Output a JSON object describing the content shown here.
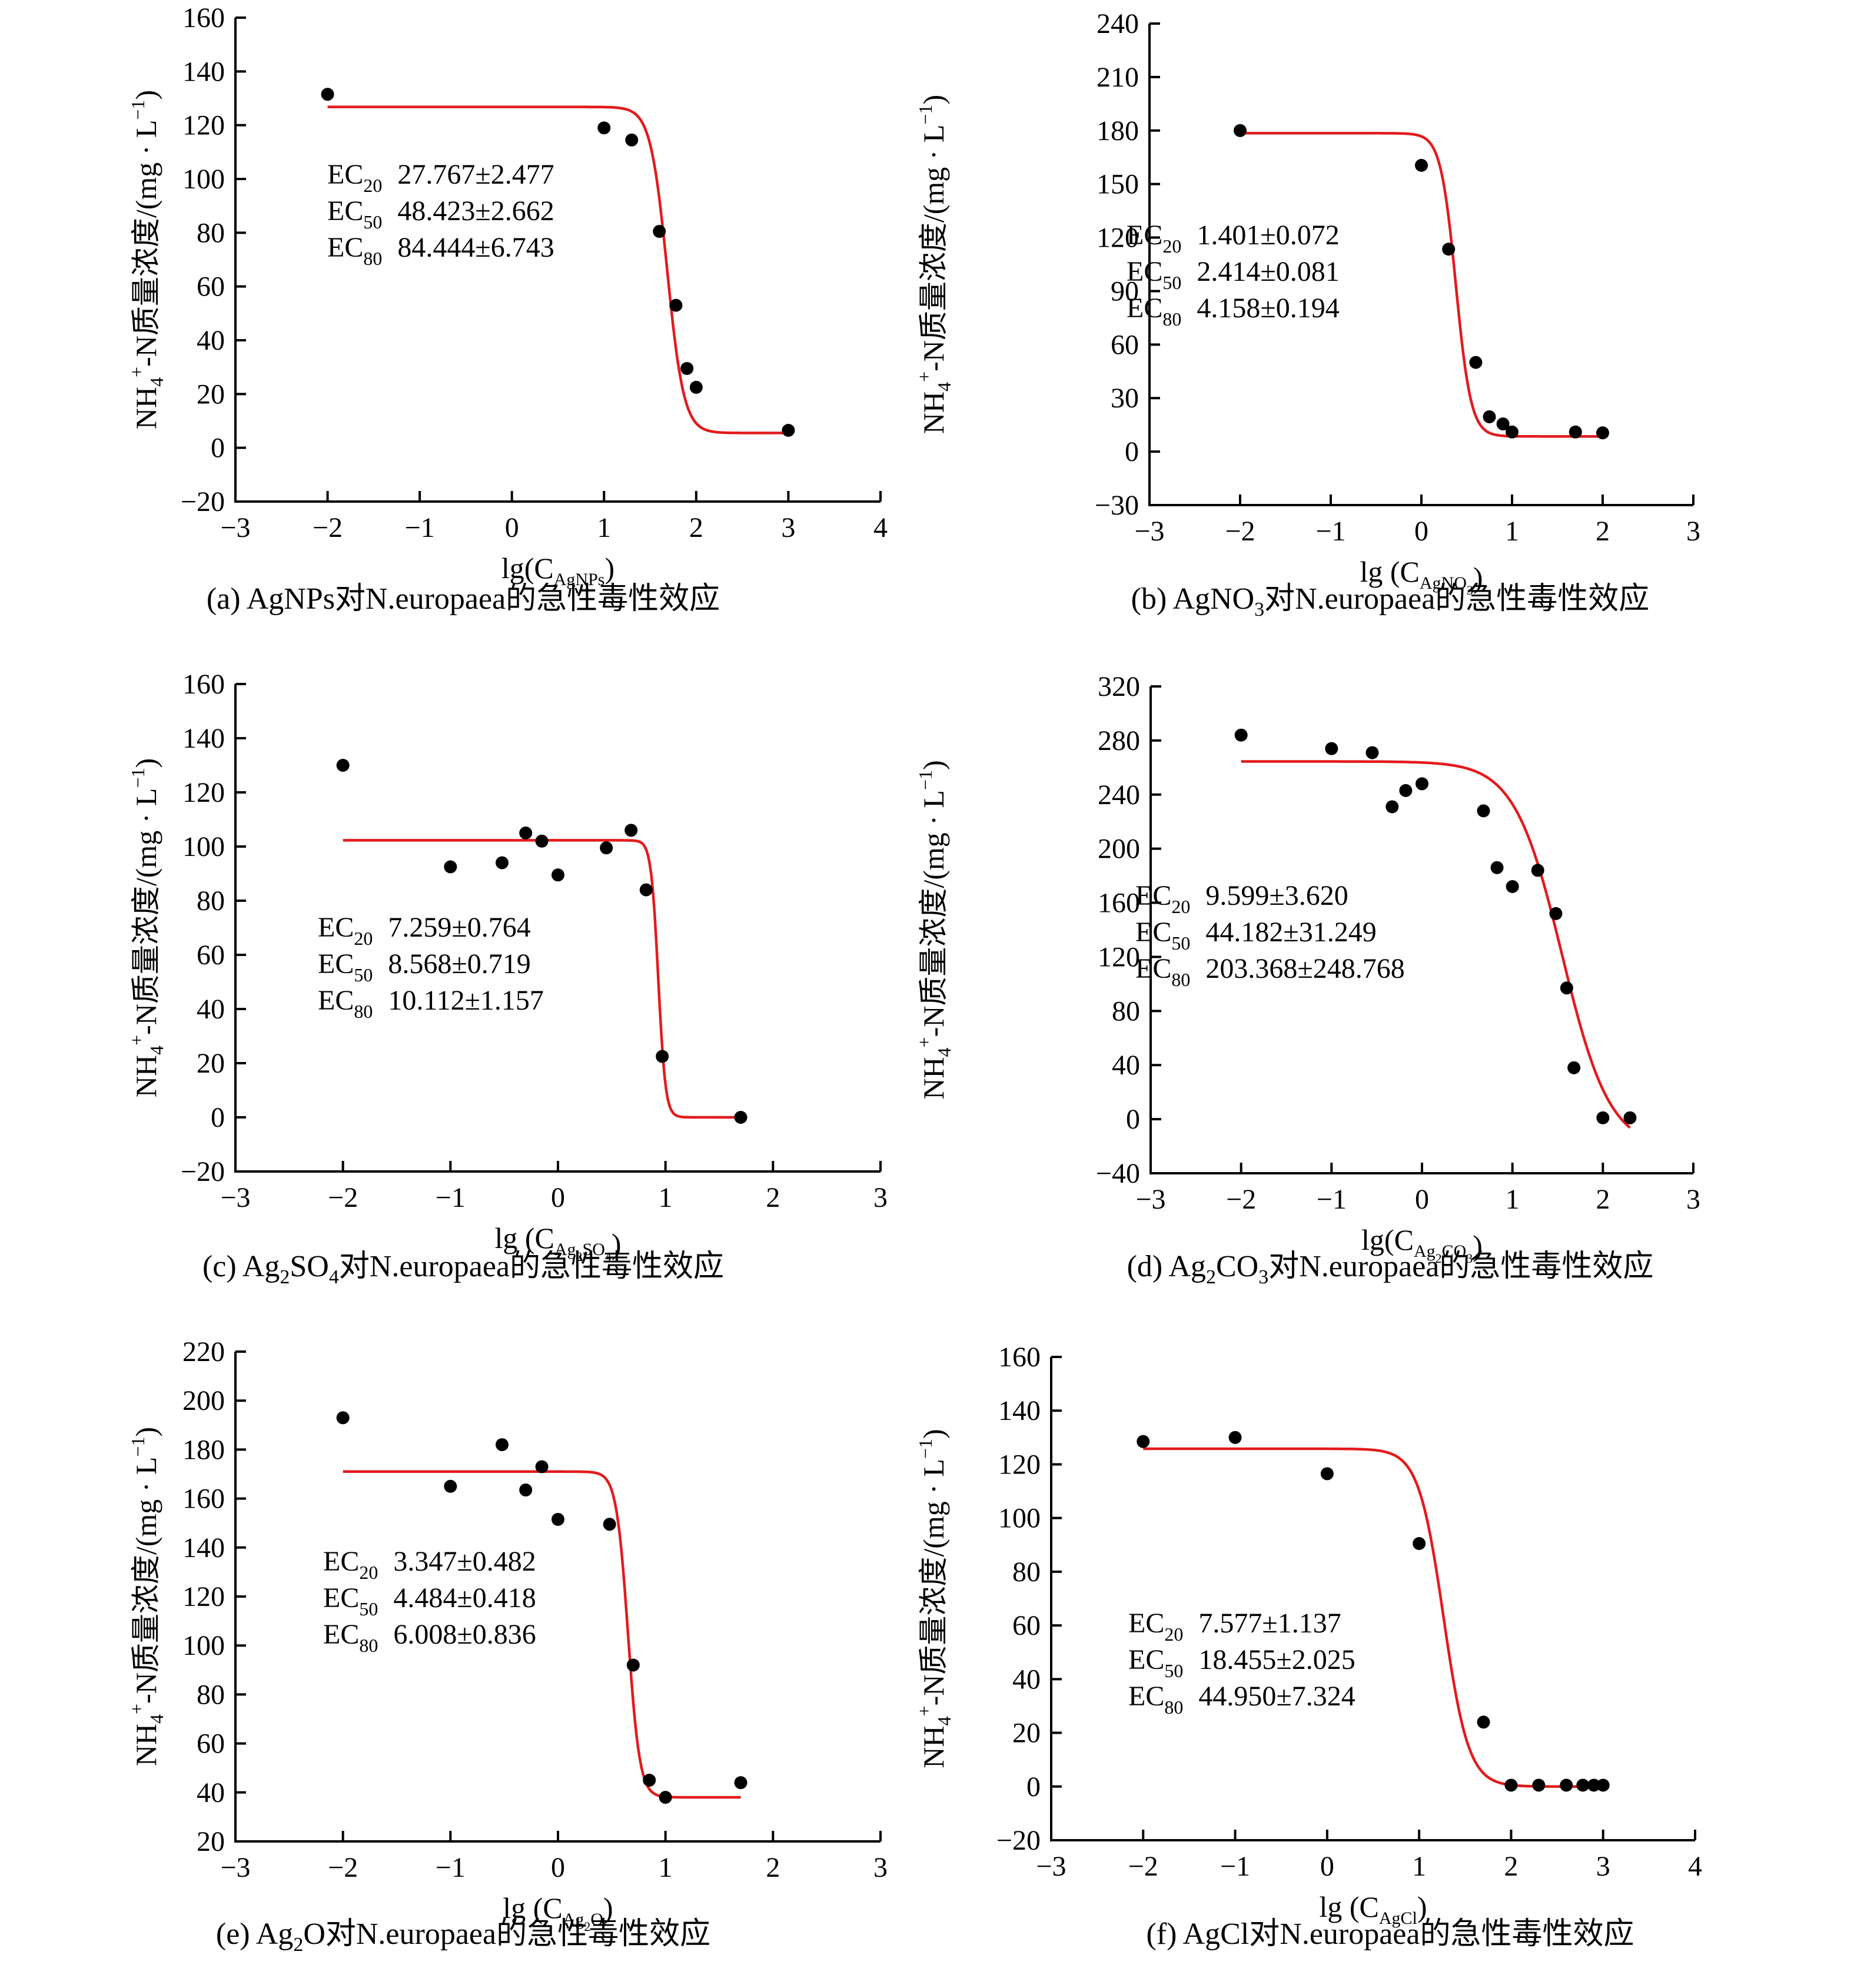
{
  "labels": {
    "ylabel_prefix": "NH",
    "ylabel_sub": "4",
    "ylabel_sup": "+",
    "ylabel_rest": "-N质量浓度/(mg · L",
    "ylabel_exp": "−1",
    "ylabel_close": ")",
    "ec_prefix": "EC",
    "caption_suffix": "对N.europaea的急性毒性效应"
  },
  "colors": {
    "curve": "#e31a1c",
    "points": "#000000",
    "axes": "#000000"
  },
  "chart_data": [
    {
      "id": "a",
      "type": "scatter",
      "caption_label": "(a)",
      "agent_parts": [
        [
          "AgNPs",
          ""
        ]
      ],
      "xlabel": {
        "prefix": "lg(C",
        "sub_parts": [
          [
            "AgNPs",
            ""
          ]
        ],
        "suffix": ")"
      },
      "xlim": [
        -3,
        4
      ],
      "ylim": [
        -20,
        160
      ],
      "xticks": [
        "−3",
        "−2",
        "−1",
        "0",
        "1",
        "2",
        "3",
        "4"
      ],
      "xtick_values": [
        -3,
        -2,
        -1,
        0,
        1,
        2,
        3,
        4
      ],
      "yticks": [
        "−20",
        "0",
        "20",
        "40",
        "60",
        "80",
        "100",
        "120",
        "140",
        "160"
      ],
      "ytick_values": [
        -20,
        0,
        20,
        40,
        60,
        80,
        100,
        120,
        140,
        160
      ],
      "points": [
        [
          -2,
          131.5
        ],
        [
          1,
          119
        ],
        [
          1.3,
          114.5
        ],
        [
          1.6,
          80.5
        ],
        [
          1.78,
          53
        ],
        [
          1.9,
          29.5
        ],
        [
          2,
          22.5
        ],
        [
          3,
          6.5
        ]
      ],
      "curve": {
        "top": 126.8,
        "bottom": 5.5,
        "x50": 1.685,
        "hill": 4.8,
        "x_range": [
          -2,
          3
        ]
      },
      "ec": [
        {
          "sub": "20",
          "value": "27.767±2.477"
        },
        {
          "sub": "50",
          "value": "48.423±2.662"
        },
        {
          "sub": "80",
          "value": "84.444±6.743"
        }
      ]
    },
    {
      "id": "b",
      "type": "scatter",
      "caption_label": "(b)",
      "agent_parts": [
        [
          "AgNO",
          ""
        ],
        [
          "3",
          "sub"
        ]
      ],
      "xlabel": {
        "prefix": "lg (C",
        "sub_parts": [
          [
            "AgNO",
            ""
          ],
          [
            "3",
            "sub2"
          ]
        ],
        "suffix": ")"
      },
      "xlim": [
        -3,
        3
      ],
      "ylim": [
        -30,
        240
      ],
      "xticks": [
        "−3",
        "−2",
        "−1",
        "0",
        "1",
        "2",
        "3"
      ],
      "xtick_values": [
        -3,
        -2,
        -1,
        0,
        1,
        2,
        3
      ],
      "yticks": [
        "−30",
        "0",
        "30",
        "60",
        "90",
        "120",
        "150",
        "180",
        "210",
        "240"
      ],
      "ytick_values": [
        -30,
        0,
        30,
        60,
        90,
        120,
        150,
        180,
        210,
        240
      ],
      "points": [
        [
          -2,
          180
        ],
        [
          0,
          160.5
        ],
        [
          0.3,
          113.5
        ],
        [
          0.6,
          50
        ],
        [
          0.75,
          19.5
        ],
        [
          0.9,
          15.5
        ],
        [
          1,
          11
        ],
        [
          1.7,
          11
        ],
        [
          2,
          10.5
        ]
      ],
      "curve": {
        "top": 178.5,
        "bottom": 8.5,
        "x50": 0.38,
        "hill": 5.2,
        "x_range": [
          -2,
          2
        ]
      },
      "ec": [
        {
          "sub": "20",
          "value": "1.401±0.072"
        },
        {
          "sub": "50",
          "value": "2.414±0.081"
        },
        {
          "sub": "80",
          "value": "4.158±0.194"
        }
      ]
    },
    {
      "id": "c",
      "type": "scatter",
      "caption_label": "(c)",
      "agent_parts": [
        [
          "Ag",
          ""
        ],
        [
          "2",
          "sub"
        ],
        [
          "SO",
          ""
        ],
        [
          "4",
          "sub"
        ]
      ],
      "xlabel": {
        "prefix": "lg (C",
        "sub_parts": [
          [
            "Ag",
            ""
          ],
          [
            "2",
            "sub2"
          ],
          [
            "SO",
            ""
          ],
          [
            "4",
            "sub2"
          ]
        ],
        "suffix": ")"
      },
      "xlim": [
        -3,
        3
      ],
      "ylim": [
        -20,
        160
      ],
      "xticks": [
        "−3",
        "−2",
        "−1",
        "0",
        "1",
        "2",
        "3"
      ],
      "xtick_values": [
        -3,
        -2,
        -1,
        0,
        1,
        2,
        3
      ],
      "yticks": [
        "−20",
        "0",
        "20",
        "40",
        "60",
        "80",
        "100",
        "120",
        "140",
        "160"
      ],
      "ytick_values": [
        -20,
        0,
        20,
        40,
        60,
        80,
        100,
        120,
        140,
        160
      ],
      "points": [
        [
          -2,
          130
        ],
        [
          -1,
          92.5
        ],
        [
          -0.52,
          94
        ],
        [
          -0.3,
          105
        ],
        [
          -0.15,
          102
        ],
        [
          0,
          89.5
        ],
        [
          0.45,
          99.5
        ],
        [
          0.68,
          106
        ],
        [
          0.82,
          84
        ],
        [
          0.97,
          22.5
        ],
        [
          1.7,
          0
        ]
      ],
      "curve": {
        "top": 102.3,
        "bottom": 0,
        "x50": 0.933,
        "hill": 13,
        "x_range": [
          -2,
          1.7
        ]
      },
      "ec": [
        {
          "sub": "20",
          "value": "7.259±0.764"
        },
        {
          "sub": "50",
          "value": "8.568±0.719"
        },
        {
          "sub": "80",
          "value": "10.112±1.157"
        }
      ]
    },
    {
      "id": "d",
      "type": "scatter",
      "caption_label": "(d)",
      "agent_parts": [
        [
          "Ag",
          ""
        ],
        [
          "2",
          "sub"
        ],
        [
          "CO",
          ""
        ],
        [
          "3",
          "sub"
        ]
      ],
      "xlabel": {
        "prefix": "lg(C",
        "sub_parts": [
          [
            "Ag",
            ""
          ],
          [
            "2",
            "sub2"
          ],
          [
            "CO",
            ""
          ],
          [
            "3",
            "sub2"
          ]
        ],
        "suffix": ")"
      },
      "xlim": [
        -3,
        3
      ],
      "ylim": [
        -40,
        320
      ],
      "xticks": [
        "−3",
        "−2",
        "−1",
        "0",
        "1",
        "2",
        "3"
      ],
      "xtick_values": [
        -3,
        -2,
        -1,
        0,
        1,
        2,
        3
      ],
      "yticks": [
        "−40",
        "0",
        "40",
        "80",
        "120",
        "160",
        "200",
        "240",
        "280",
        "320"
      ],
      "ytick_values": [
        -40,
        0,
        40,
        80,
        120,
        160,
        200,
        240,
        280,
        320
      ],
      "points": [
        [
          -2,
          284
        ],
        [
          -1,
          274
        ],
        [
          -0.55,
          271
        ],
        [
          -0.33,
          231
        ],
        [
          -0.18,
          243
        ],
        [
          0,
          248
        ],
        [
          0.68,
          228
        ],
        [
          0.83,
          186
        ],
        [
          1,
          172
        ],
        [
          1.28,
          184
        ],
        [
          1.48,
          152
        ],
        [
          1.6,
          97
        ],
        [
          1.68,
          38
        ],
        [
          2,
          1
        ],
        [
          2.3,
          1
        ]
      ],
      "curve": {
        "top": 264.5,
        "bottom": -22,
        "x50": 1.55,
        "hill": 1.65,
        "x_range": [
          -2,
          2.3
        ]
      },
      "ec": [
        {
          "sub": "20",
          "value": "9.599±3.620"
        },
        {
          "sub": "50",
          "value": "44.182±31.249"
        },
        {
          "sub": "80",
          "value": "203.368±248.768"
        }
      ]
    },
    {
      "id": "e",
      "type": "scatter",
      "caption_label": "(e)",
      "agent_parts": [
        [
          "Ag",
          ""
        ],
        [
          "2",
          "sub"
        ],
        [
          "O",
          ""
        ]
      ],
      "xlabel": {
        "prefix": "lg (C",
        "sub_parts": [
          [
            "Ag",
            ""
          ],
          [
            "2",
            "sub2"
          ],
          [
            "O",
            ""
          ]
        ],
        "suffix": ")"
      },
      "xlim": [
        -3,
        3
      ],
      "ylim": [
        20,
        220
      ],
      "xticks": [
        "−3",
        "−2",
        "−1",
        "0",
        "1",
        "2",
        "3"
      ],
      "xtick_values": [
        -3,
        -2,
        -1,
        0,
        1,
        2,
        3
      ],
      "yticks": [
        "20",
        "40",
        "60",
        "80",
        "100",
        "120",
        "140",
        "160",
        "180",
        "200",
        "220"
      ],
      "ytick_values": [
        20,
        40,
        60,
        80,
        100,
        120,
        140,
        160,
        180,
        200,
        220
      ],
      "points": [
        [
          -2,
          193
        ],
        [
          -1,
          165
        ],
        [
          -0.52,
          182
        ],
        [
          -0.3,
          163.5
        ],
        [
          -0.15,
          173
        ],
        [
          0,
          151.5
        ],
        [
          0.48,
          149.5
        ],
        [
          0.7,
          92
        ],
        [
          0.85,
          45
        ],
        [
          1,
          38
        ],
        [
          1.7,
          44
        ]
      ],
      "curve": {
        "top": 171,
        "bottom": 38,
        "x50": 0.652,
        "hill": 8,
        "x_range": [
          -2,
          1.7
        ]
      },
      "ec": [
        {
          "sub": "20",
          "value": "3.347±0.482"
        },
        {
          "sub": "50",
          "value": "4.484±0.418"
        },
        {
          "sub": "80",
          "value": "6.008±0.836"
        }
      ]
    },
    {
      "id": "f",
      "type": "scatter",
      "caption_label": "(f)",
      "agent_parts": [
        [
          "AgCl",
          ""
        ]
      ],
      "xlabel": {
        "prefix": "lg (C",
        "sub_parts": [
          [
            "AgCl",
            ""
          ]
        ],
        "suffix": ")"
      },
      "xlim": [
        -3,
        4
      ],
      "ylim": [
        -20,
        160
      ],
      "xticks": [
        "−3",
        "−2",
        "−1",
        "0",
        "1",
        "2",
        "3",
        "4"
      ],
      "xtick_values": [
        -3,
        -2,
        -1,
        0,
        1,
        2,
        3,
        4
      ],
      "yticks": [
        "−20",
        "0",
        "20",
        "40",
        "60",
        "80",
        "100",
        "120",
        "140",
        "160"
      ],
      "ytick_values": [
        -20,
        0,
        20,
        40,
        60,
        80,
        100,
        120,
        140,
        160
      ],
      "points": [
        [
          -2,
          128.5
        ],
        [
          -1,
          130
        ],
        [
          0,
          116.5
        ],
        [
          1,
          90.5
        ],
        [
          1.7,
          24
        ],
        [
          2,
          0.5
        ],
        [
          2.3,
          0.5
        ],
        [
          2.6,
          0.5
        ],
        [
          2.78,
          0.5
        ],
        [
          2.9,
          0.5
        ],
        [
          3,
          0.5
        ]
      ],
      "curve": {
        "top": 125.8,
        "bottom": 0,
        "x50": 1.266,
        "hill": 3.2,
        "x_range": [
          -2,
          3
        ]
      },
      "ec": [
        {
          "sub": "20",
          "value": "7.577±1.137"
        },
        {
          "sub": "50",
          "value": "18.455±2.025"
        },
        {
          "sub": "80",
          "value": "44.950±7.324"
        }
      ]
    }
  ]
}
